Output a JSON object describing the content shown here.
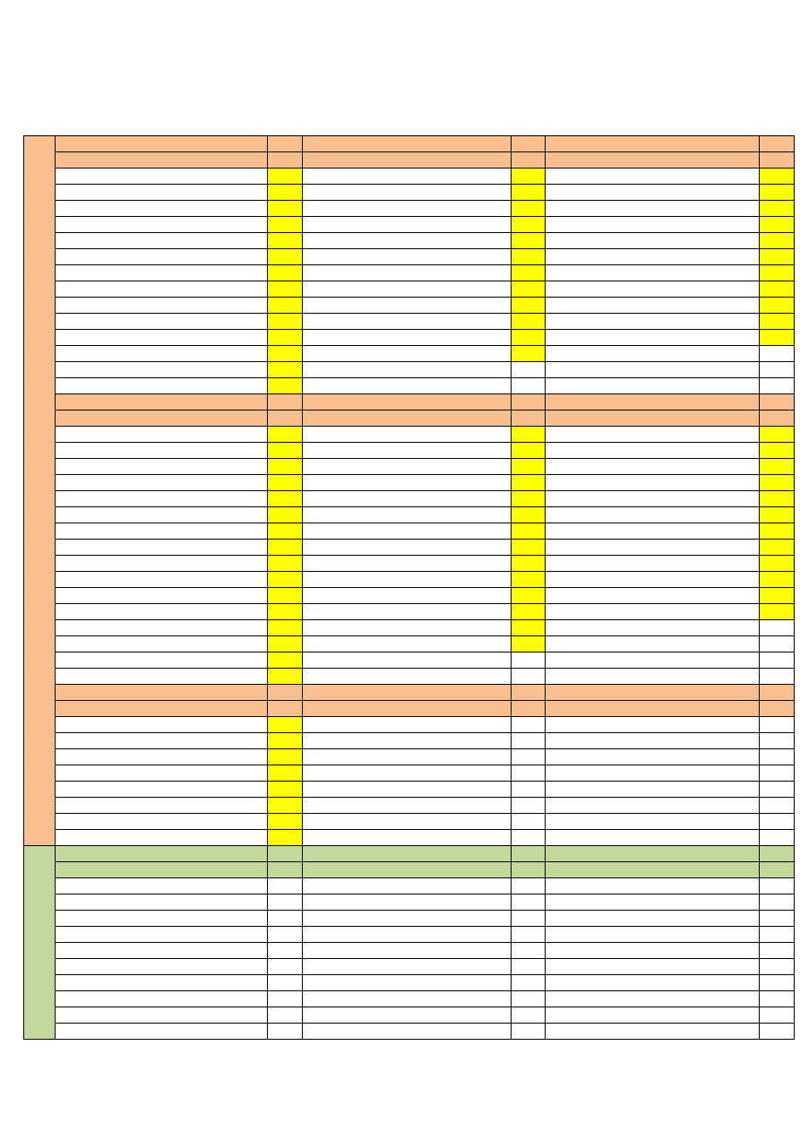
{
  "table": {
    "sections": [
      {
        "color": "#f9bf8f",
        "rows": [
          [
            "#f9bf8f",
            "#f9bf8f",
            "#f9bf8f",
            "#f9bf8f",
            "#f9bf8f",
            "#f9bf8f"
          ],
          [
            "#f9bf8f",
            "#f9bf8f",
            "#f9bf8f",
            "#f9bf8f",
            "#f9bf8f",
            "#f9bf8f"
          ],
          [
            "#fff",
            "#ff0",
            "#fff",
            "#ff0",
            "#fff",
            "#ff0"
          ],
          [
            "#fff",
            "#ff0",
            "#fff",
            "#ff0",
            "#fff",
            "#ff0"
          ],
          [
            "#fff",
            "#ff0",
            "#fff",
            "#ff0",
            "#fff",
            "#ff0"
          ],
          [
            "#fff",
            "#ff0",
            "#fff",
            "#ff0",
            "#fff",
            "#ff0"
          ],
          [
            "#fff",
            "#ff0",
            "#fff",
            "#ff0",
            "#fff",
            "#ff0"
          ],
          [
            "#fff",
            "#ff0",
            "#fff",
            "#ff0",
            "#fff",
            "#ff0"
          ],
          [
            "#fff",
            "#ff0",
            "#fff",
            "#ff0",
            "#fff",
            "#ff0"
          ],
          [
            "#fff",
            "#ff0",
            "#fff",
            "#ff0",
            "#fff",
            "#ff0"
          ],
          [
            "#fff",
            "#ff0",
            "#fff",
            "#ff0",
            "#fff",
            "#ff0"
          ],
          [
            "#fff",
            "#ff0",
            "#fff",
            "#ff0",
            "#fff",
            "#ff0"
          ],
          [
            "#fff",
            "#ff0",
            "#fff",
            "#ff0",
            "#fff",
            "#ff0"
          ],
          [
            "#fff",
            "#ff0",
            "#fff",
            "#ff0",
            "#fff",
            "#fff"
          ],
          [
            "#fff",
            "#ff0",
            "#fff",
            "#fff",
            "#fff",
            "#fff"
          ],
          [
            "#fff",
            "#ff0",
            "#fff",
            "#fff",
            "#fff",
            "#fff"
          ],
          [
            "#f9bf8f",
            "#f9bf8f",
            "#f9bf8f",
            "#f9bf8f",
            "#f9bf8f",
            "#f9bf8f"
          ],
          [
            "#f9bf8f",
            "#f9bf8f",
            "#f9bf8f",
            "#f9bf8f",
            "#f9bf8f",
            "#f9bf8f"
          ],
          [
            "#fff",
            "#ff0",
            "#fff",
            "#ff0",
            "#fff",
            "#ff0"
          ],
          [
            "#fff",
            "#ff0",
            "#fff",
            "#ff0",
            "#fff",
            "#ff0"
          ],
          [
            "#fff",
            "#ff0",
            "#fff",
            "#ff0",
            "#fff",
            "#ff0"
          ],
          [
            "#fff",
            "#ff0",
            "#fff",
            "#ff0",
            "#fff",
            "#ff0"
          ],
          [
            "#fff",
            "#ff0",
            "#fff",
            "#ff0",
            "#fff",
            "#ff0"
          ],
          [
            "#fff",
            "#ff0",
            "#fff",
            "#ff0",
            "#fff",
            "#ff0"
          ],
          [
            "#fff",
            "#ff0",
            "#fff",
            "#ff0",
            "#fff",
            "#ff0"
          ],
          [
            "#fff",
            "#ff0",
            "#fff",
            "#ff0",
            "#fff",
            "#ff0"
          ],
          [
            "#fff",
            "#ff0",
            "#fff",
            "#ff0",
            "#fff",
            "#ff0"
          ],
          [
            "#fff",
            "#ff0",
            "#fff",
            "#ff0",
            "#fff",
            "#ff0"
          ],
          [
            "#fff",
            "#ff0",
            "#fff",
            "#ff0",
            "#fff",
            "#ff0"
          ],
          [
            "#fff",
            "#ff0",
            "#fff",
            "#ff0",
            "#fff",
            "#ff0"
          ],
          [
            "#fff",
            "#ff0",
            "#fff",
            "#ff0",
            "#fff",
            "#fff"
          ],
          [
            "#fff",
            "#ff0",
            "#fff",
            "#ff0",
            "#fff",
            "#fff"
          ],
          [
            "#fff",
            "#ff0",
            "#fff",
            "#fff",
            "#fff",
            "#fff"
          ],
          [
            "#fff",
            "#ff0",
            "#fff",
            "#fff",
            "#fff",
            "#fff"
          ],
          [
            "#f9bf8f",
            "#f9bf8f",
            "#f9bf8f",
            "#f9bf8f",
            "#f9bf8f",
            "#f9bf8f"
          ],
          [
            "#f9bf8f",
            "#f9bf8f",
            "#f9bf8f",
            "#f9bf8f",
            "#f9bf8f",
            "#f9bf8f"
          ],
          [
            "#fff",
            "#ff0",
            "#fff",
            "#fff",
            "#fff",
            "#fff"
          ],
          [
            "#fff",
            "#ff0",
            "#fff",
            "#fff",
            "#fff",
            "#fff"
          ],
          [
            "#fff",
            "#ff0",
            "#fff",
            "#fff",
            "#fff",
            "#fff"
          ],
          [
            "#fff",
            "#ff0",
            "#fff",
            "#fff",
            "#fff",
            "#fff"
          ],
          [
            "#fff",
            "#ff0",
            "#fff",
            "#fff",
            "#fff",
            "#fff"
          ],
          [
            "#fff",
            "#ff0",
            "#fff",
            "#fff",
            "#fff",
            "#fff"
          ],
          [
            "#fff",
            "#ff0",
            "#fff",
            "#fff",
            "#fff",
            "#fff"
          ],
          [
            "#fff",
            "#ff0",
            "#fff",
            "#fff",
            "#fff",
            "#fff"
          ]
        ]
      },
      {
        "color": "#c4d89b",
        "rows": [
          [
            "#c4d89b",
            "#c4d89b",
            "#c4d89b",
            "#c4d89b",
            "#c4d89b",
            "#c4d89b"
          ],
          [
            "#c4d89b",
            "#c4d89b",
            "#c4d89b",
            "#c4d89b",
            "#c4d89b",
            "#c4d89b"
          ],
          [
            "#fff",
            "#fff",
            "#fff",
            "#fff",
            "#fff",
            "#fff"
          ],
          [
            "#fff",
            "#fff",
            "#fff",
            "#fff",
            "#fff",
            "#fff"
          ],
          [
            "#fff",
            "#fff",
            "#fff",
            "#fff",
            "#fff",
            "#fff"
          ],
          [
            "#fff",
            "#fff",
            "#fff",
            "#fff",
            "#fff",
            "#fff"
          ],
          [
            "#fff",
            "#fff",
            "#fff",
            "#fff",
            "#fff",
            "#fff"
          ],
          [
            "#fff",
            "#fff",
            "#fff",
            "#fff",
            "#fff",
            "#fff"
          ],
          [
            "#fff",
            "#fff",
            "#fff",
            "#fff",
            "#fff",
            "#fff"
          ],
          [
            "#fff",
            "#fff",
            "#fff",
            "#fff",
            "#fff",
            "#fff"
          ],
          [
            "#fff",
            "#fff",
            "#fff",
            "#fff",
            "#fff",
            "#fff"
          ],
          [
            "#fff",
            "#fff",
            "#fff",
            "#fff",
            "#fff",
            "#fff"
          ]
        ]
      }
    ]
  }
}
